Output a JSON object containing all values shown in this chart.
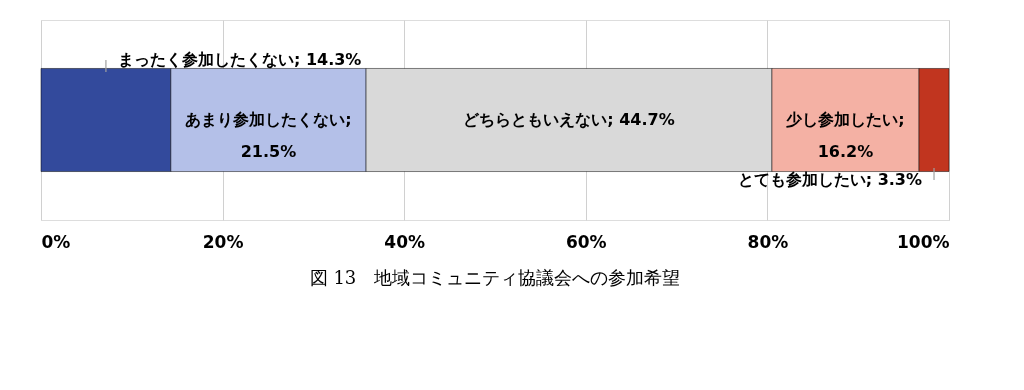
{
  "chart_data": {
    "type": "bar",
    "orientation": "horizontal",
    "stacked": true,
    "title": "図 13　地域コミュニティ協議会への参加希望",
    "categories": [
      null
    ],
    "series": [
      {
        "color": "#334a9c",
        "values": [
          14.3
        ],
        "value_labels": [
          "まったく参加したくない; 14.3%"
        ]
      },
      {
        "color": "#b4c0e8",
        "values": [
          21.5
        ],
        "value_labels": [
          "あまり参加したくない; 21.5%"
        ]
      },
      {
        "color": "#d9d9d9",
        "values": [
          44.7
        ],
        "value_labels": [
          "どちらともいえない; 44.7%"
        ]
      },
      {
        "color": "#f4b1a4",
        "values": [
          16.2
        ],
        "value_labels": [
          "少し参加したい; 16.2%"
        ]
      },
      {
        "color": "#c1351f",
        "values": [
          3.3
        ],
        "value_labels": [
          "とても参加したい; 3.3%"
        ]
      }
    ],
    "xlim": [
      0,
      100
    ],
    "xticks": [
      {
        "value": 0,
        "label": "0%"
      },
      {
        "value": 20,
        "label": "20%"
      },
      {
        "value": 40,
        "label": "40%"
      },
      {
        "value": 60,
        "label": "60%"
      },
      {
        "value": 80,
        "label": "80%"
      },
      {
        "value": 100,
        "label": "100%"
      }
    ],
    "grid": "x",
    "legend": false,
    "tick_labels": "x"
  }
}
